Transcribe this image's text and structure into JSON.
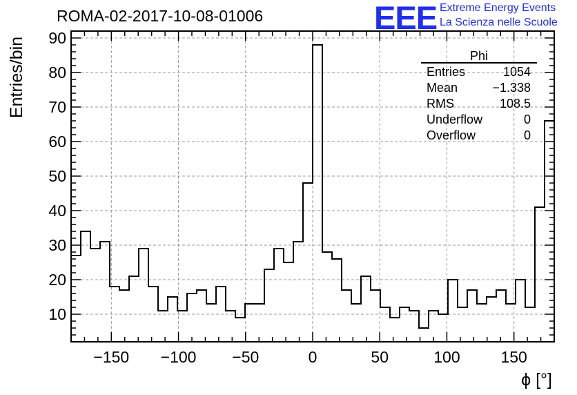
{
  "header": {
    "title": "ROMA-02-2017-10-08-01006",
    "logo": "EEE",
    "tagline_1": "Extreme Energy Events",
    "tagline_2": "La Scienza nelle Scuole"
  },
  "chart_data": {
    "type": "bar",
    "style": "step-histogram",
    "title": "ROMA-02-2017-10-08-01006",
    "xlabel": "ϕ [°]",
    "ylabel": "Entries/bin",
    "xlim": [
      -180,
      180
    ],
    "ylim": [
      2,
      92
    ],
    "bin_width": 7.2,
    "x_ticks": [
      -150,
      -100,
      -50,
      0,
      50,
      100,
      150
    ],
    "x_tick_labels": [
      "−150",
      "−100",
      "−50",
      "0",
      "50",
      "100",
      "150"
    ],
    "y_ticks": [
      10,
      20,
      30,
      40,
      50,
      60,
      70,
      80,
      90
    ],
    "y_tick_labels": [
      "10",
      "20",
      "30",
      "40",
      "50",
      "60",
      "70",
      "80",
      "90"
    ],
    "grid": true,
    "series": [
      {
        "values": [
          27,
          34,
          29,
          31,
          18,
          17,
          21,
          29,
          18,
          11,
          15,
          11,
          16,
          17,
          13,
          18,
          11,
          9,
          13,
          13,
          23,
          29,
          25,
          31,
          48,
          88,
          28,
          26,
          17,
          13,
          21,
          17,
          12,
          9,
          12,
          11,
          6,
          11,
          10,
          20,
          12,
          17,
          13,
          15,
          17,
          13,
          20,
          12,
          41,
          66
        ]
      }
    ],
    "stats_box": {
      "title": "Phi",
      "rows": [
        {
          "label": "Entries",
          "value": "1054"
        },
        {
          "label": "Mean",
          "value": "−1.338"
        },
        {
          "label": "RMS",
          "value": "108.5"
        },
        {
          "label": "Underflow",
          "value": "0"
        },
        {
          "label": "Overflow",
          "value": "0"
        }
      ]
    },
    "colors": {
      "line": "#000000",
      "grid": "#9a9a9a",
      "logo": "#1f2ef0"
    }
  }
}
